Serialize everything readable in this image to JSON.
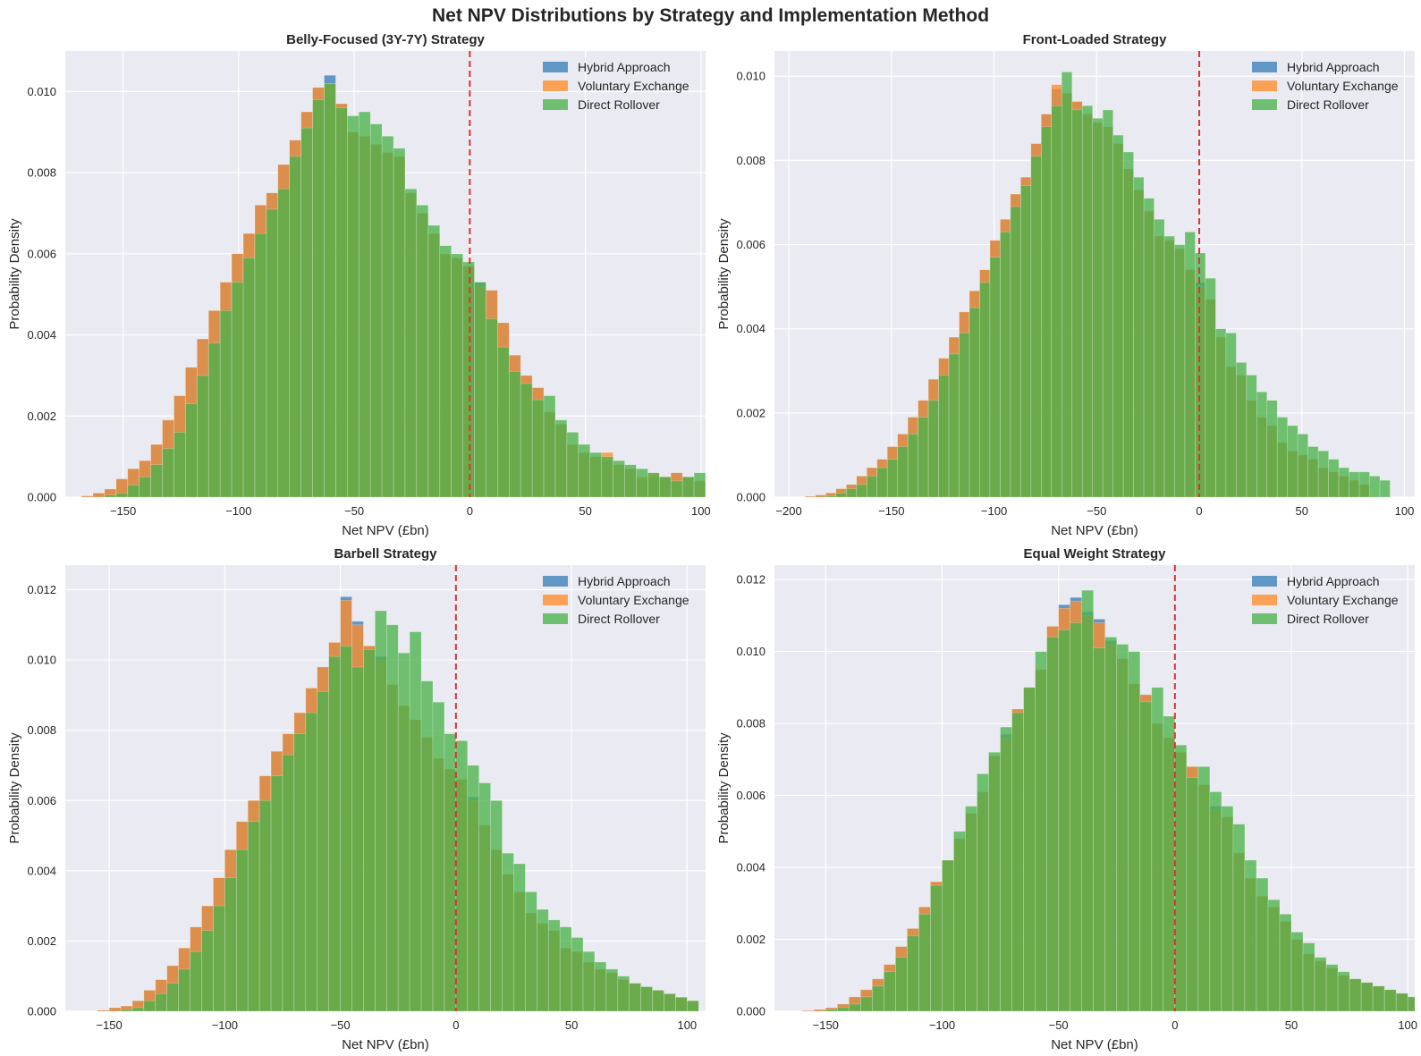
{
  "figure_title": "Net NPV Distributions by Strategy and Implementation Method",
  "colors": {
    "plot_bg": "#eaeaf2",
    "grid": "#ffffff",
    "zero_line": "#e03131",
    "series": [
      "#3a7fb8",
      "#ff8c2a",
      "#4cb24c"
    ]
  },
  "legend": [
    "Hybrid Approach",
    "Voluntary Exchange",
    "Direct Rollover"
  ],
  "chart_data": [
    {
      "type": "bar",
      "title": "Belly-Focused (3Y-7Y) Strategy",
      "xlabel": "Net NPV (£bn)",
      "ylabel": "Probability Density",
      "xlim": [
        -175,
        102
      ],
      "ylim": [
        0,
        0.011
      ],
      "xticks": [
        -150,
        -100,
        -50,
        0,
        50,
        100
      ],
      "yticks": [
        0.0,
        0.002,
        0.004,
        0.006,
        0.008,
        0.01
      ],
      "yticklabels": [
        "0.000",
        "0.002",
        "0.004",
        "0.006",
        "0.008",
        "0.010"
      ],
      "tick_text": [
        "−150",
        "−100",
        "−50",
        "0",
        "50",
        "100"
      ],
      "vline": 0,
      "legend_position": "top-right",
      "grid": true,
      "series": [
        {
          "name": "Hybrid Approach",
          "bin_start": -168,
          "bin_width": 5,
          "values": [
            3e-05,
            0.0001,
            0.0002,
            0.00045,
            0.0007,
            0.0009,
            0.0013,
            0.0019,
            0.0025,
            0.0032,
            0.0039,
            0.0046,
            0.0053,
            0.006,
            0.0065,
            0.0072,
            0.0075,
            0.0082,
            0.0088,
            0.0095,
            0.0101,
            0.0104,
            0.0097,
            0.009,
            0.0089,
            0.0087,
            0.0085,
            0.0084,
            0.0075,
            0.007,
            0.0065,
            0.006,
            0.0059,
            0.0057,
            0.0053,
            0.0051,
            0.0043,
            0.0035,
            0.003,
            0.0027,
            0.0021,
            0.0018,
            0.0013,
            0.0011,
            0.001,
            0.0009,
            0.0008,
            0.0007,
            0.00045,
            0.0005,
            0.0005,
            0.0006,
            0.0005,
            0.0004
          ]
        },
        {
          "name": "Voluntary Exchange",
          "bin_start": -168,
          "bin_width": 5,
          "values": [
            3e-05,
            0.0001,
            0.0002,
            0.00045,
            0.0007,
            0.0009,
            0.0013,
            0.0019,
            0.0025,
            0.0032,
            0.0039,
            0.0046,
            0.0053,
            0.006,
            0.0065,
            0.0072,
            0.0075,
            0.0082,
            0.0088,
            0.0095,
            0.0101,
            0.0102,
            0.0097,
            0.009,
            0.0089,
            0.0087,
            0.0085,
            0.0084,
            0.0075,
            0.007,
            0.0065,
            0.006,
            0.0059,
            0.0057,
            0.0052,
            0.0051,
            0.0043,
            0.0035,
            0.003,
            0.0027,
            0.0021,
            0.0018,
            0.0013,
            0.0011,
            0.001,
            0.0011,
            0.0008,
            0.0007,
            0.0005,
            0.0006,
            0.0005,
            0.0006,
            0.0005,
            0.0004
          ]
        },
        {
          "name": "Direct Rollover",
          "bin_start": -158,
          "bin_width": 5,
          "values": [
            5e-05,
            0.0001,
            0.0003,
            0.0005,
            0.0008,
            0.0012,
            0.0016,
            0.0023,
            0.003,
            0.0038,
            0.0046,
            0.0053,
            0.0059,
            0.0065,
            0.0071,
            0.0076,
            0.0084,
            0.0091,
            0.0098,
            0.0102,
            0.0096,
            0.0094,
            0.0095,
            0.0092,
            0.0089,
            0.0086,
            0.0076,
            0.0072,
            0.0067,
            0.0062,
            0.006,
            0.0058,
            0.0053,
            0.0044,
            0.0037,
            0.0031,
            0.0028,
            0.0024,
            0.0025,
            0.0019,
            0.0016,
            0.0013,
            0.0011,
            0.001,
            0.0009,
            0.0008,
            0.0007,
            0.0006,
            0.0005,
            0.0004,
            0.0005,
            0.0006,
            0.0007
          ]
        }
      ]
    },
    {
      "type": "bar",
      "title": "Front-Loaded Strategy",
      "xlabel": "Net NPV (£bn)",
      "ylabel": "Probability Density",
      "xlim": [
        -207,
        105
      ],
      "ylim": [
        0,
        0.0106
      ],
      "xticks": [
        -200,
        -150,
        -100,
        -50,
        0,
        50,
        100
      ],
      "yticks": [
        0.0,
        0.002,
        0.004,
        0.006,
        0.008,
        0.01
      ],
      "yticklabels": [
        "0.000",
        "0.002",
        "0.004",
        "0.006",
        "0.008",
        "0.010"
      ],
      "tick_text": [
        "−200",
        "−150",
        "−100",
        "−50",
        "0",
        "50",
        "100"
      ],
      "vline": 0,
      "legend_position": "top-right",
      "grid": true,
      "series": [
        {
          "name": "Hybrid Approach",
          "bin_start": -192,
          "bin_width": 5,
          "values": [
            2e-05,
            5e-05,
            0.0001,
            0.0002,
            0.0003,
            0.0005,
            0.0007,
            0.0009,
            0.0012,
            0.0015,
            0.0019,
            0.0023,
            0.0028,
            0.0033,
            0.0038,
            0.0044,
            0.0049,
            0.0054,
            0.0061,
            0.0066,
            0.0072,
            0.0076,
            0.0084,
            0.0091,
            0.0097,
            0.0096,
            0.0094,
            0.0091,
            0.0089,
            0.0088,
            0.0084,
            0.0078,
            0.0073,
            0.0068,
            0.0062,
            0.0061,
            0.0059,
            0.0054,
            0.0051,
            0.0047,
            0.0038,
            0.0031,
            0.0029,
            0.0023,
            0.0019,
            0.0017,
            0.0013,
            0.0011,
            0.001,
            0.0009,
            0.0007,
            0.0006,
            0.0005,
            0.0004,
            0.0003
          ]
        },
        {
          "name": "Voluntary Exchange",
          "bin_start": -192,
          "bin_width": 5,
          "values": [
            2e-05,
            5e-05,
            0.0001,
            0.0002,
            0.0003,
            0.0005,
            0.0007,
            0.0009,
            0.0012,
            0.0015,
            0.0019,
            0.0023,
            0.0028,
            0.0033,
            0.0038,
            0.0044,
            0.0049,
            0.0054,
            0.0061,
            0.0066,
            0.0072,
            0.0076,
            0.0084,
            0.0091,
            0.0098,
            0.0096,
            0.0094,
            0.0091,
            0.0089,
            0.0088,
            0.0084,
            0.0078,
            0.0073,
            0.0068,
            0.0062,
            0.0061,
            0.0059,
            0.0054,
            0.005,
            0.0047,
            0.0038,
            0.0031,
            0.0029,
            0.0023,
            0.0019,
            0.0017,
            0.0013,
            0.0011,
            0.001,
            0.0009,
            0.0007,
            0.0006,
            0.0005,
            0.0004,
            0.0003
          ]
        },
        {
          "name": "Direct Rollover",
          "bin_start": -182,
          "bin_width": 5,
          "values": [
            3e-05,
            0.0001,
            0.0002,
            0.0003,
            0.0005,
            0.0007,
            0.0009,
            0.0012,
            0.0015,
            0.0019,
            0.0023,
            0.0029,
            0.0034,
            0.0039,
            0.0045,
            0.0051,
            0.0057,
            0.0063,
            0.0069,
            0.0074,
            0.0081,
            0.0088,
            0.0093,
            0.0101,
            0.0092,
            0.0093,
            0.009,
            0.0092,
            0.0086,
            0.0082,
            0.0076,
            0.0071,
            0.0066,
            0.0062,
            0.006,
            0.0063,
            0.0058,
            0.0052,
            0.004,
            0.0039,
            0.0032,
            0.0029,
            0.0025,
            0.0023,
            0.0019,
            0.0017,
            0.0015,
            0.0012,
            0.0011,
            0.0009,
            0.0007,
            0.0006,
            0.0006,
            0.0005,
            0.0004
          ]
        }
      ]
    },
    {
      "type": "bar",
      "title": "Barbell Strategy",
      "xlabel": "Net NPV (£bn)",
      "ylabel": "Probability Density",
      "xlim": [
        -169,
        108
      ],
      "ylim": [
        0,
        0.0127
      ],
      "xticks": [
        -150,
        -100,
        -50,
        0,
        50,
        100
      ],
      "yticks": [
        0.0,
        0.002,
        0.004,
        0.006,
        0.008,
        0.01,
        0.012
      ],
      "yticklabels": [
        "0.000",
        "0.002",
        "0.004",
        "0.006",
        "0.008",
        "0.010",
        "0.012"
      ],
      "tick_text": [
        "−150",
        "−100",
        "−50",
        "0",
        "50",
        "100"
      ],
      "vline": 0,
      "legend_position": "top-right",
      "grid": true,
      "series": [
        {
          "name": "Hybrid Approach",
          "bin_start": -155,
          "bin_width": 5,
          "values": [
            3e-05,
            0.0001,
            0.00015,
            0.0003,
            0.0006,
            0.0009,
            0.0013,
            0.0018,
            0.0024,
            0.003,
            0.0038,
            0.0046,
            0.0054,
            0.006,
            0.0067,
            0.0074,
            0.0079,
            0.0085,
            0.0092,
            0.0098,
            0.0105,
            0.0118,
            0.0111,
            0.0104,
            0.0101,
            0.0093,
            0.0087,
            0.0083,
            0.0078,
            0.0072,
            0.0069,
            0.0066,
            0.0061,
            0.0053,
            0.0046,
            0.0039,
            0.0034,
            0.0028,
            0.0025,
            0.0023,
            0.0018,
            0.0017,
            0.0014,
            0.0012,
            0.0011,
            0.0009,
            0.0008,
            0.0007,
            0.0006,
            0.0005,
            0.0004,
            0.0003
          ]
        },
        {
          "name": "Voluntary Exchange",
          "bin_start": -155,
          "bin_width": 5,
          "values": [
            3e-05,
            0.0001,
            0.00015,
            0.0003,
            0.0006,
            0.0009,
            0.0013,
            0.0018,
            0.0024,
            0.003,
            0.0038,
            0.0046,
            0.0054,
            0.006,
            0.0067,
            0.0074,
            0.0079,
            0.0085,
            0.0092,
            0.0098,
            0.0105,
            0.0117,
            0.011,
            0.0104,
            0.01,
            0.0093,
            0.0087,
            0.0083,
            0.0078,
            0.0072,
            0.0069,
            0.0066,
            0.006,
            0.0053,
            0.0046,
            0.0039,
            0.0034,
            0.0028,
            0.0025,
            0.0023,
            0.0018,
            0.0017,
            0.0014,
            0.0012,
            0.0011,
            0.0009,
            0.0008,
            0.0007,
            0.0006,
            0.0005,
            0.0004,
            0.0003
          ]
        },
        {
          "name": "Direct Rollover",
          "bin_start": -145,
          "bin_width": 5,
          "values": [
            5e-05,
            0.0001,
            0.0003,
            0.0005,
            0.0008,
            0.0012,
            0.0017,
            0.0023,
            0.003,
            0.0038,
            0.0046,
            0.0054,
            0.006,
            0.0067,
            0.0073,
            0.0079,
            0.0085,
            0.0091,
            0.0101,
            0.0104,
            0.0098,
            0.0103,
            0.0114,
            0.011,
            0.0102,
            0.0108,
            0.0094,
            0.0088,
            0.0079,
            0.0077,
            0.007,
            0.0065,
            0.006,
            0.0045,
            0.0042,
            0.0034,
            0.0029,
            0.0026,
            0.0024,
            0.0021,
            0.0017,
            0.0014,
            0.0012,
            0.001,
            0.0008,
            0.0007,
            0.0006,
            0.0005,
            0.0004,
            0.0003
          ]
        }
      ]
    },
    {
      "type": "bar",
      "title": "Equal Weight Strategy",
      "xlabel": "Net NPV (£bn)",
      "ylabel": "Probability Density",
      "xlim": [
        -172,
        103
      ],
      "ylim": [
        0,
        0.0124
      ],
      "xticks": [
        -150,
        -100,
        -50,
        0,
        50,
        100
      ],
      "yticks": [
        0.0,
        0.002,
        0.004,
        0.006,
        0.008,
        0.01,
        0.012
      ],
      "yticklabels": [
        "0.000",
        "0.002",
        "0.004",
        "0.006",
        "0.008",
        "0.010",
        "0.012"
      ],
      "tick_text": [
        "−150",
        "−100",
        "−50",
        "0",
        "50",
        "100"
      ],
      "vline": 0,
      "legend_position": "top-right",
      "grid": true,
      "series": [
        {
          "name": "Hybrid Approach",
          "bin_start": -160,
          "bin_width": 5,
          "values": [
            2e-05,
            5e-05,
            0.0001,
            0.0002,
            0.0004,
            0.0006,
            0.0009,
            0.0013,
            0.0018,
            0.0023,
            0.0029,
            0.0036,
            0.0042,
            0.0048,
            0.0055,
            0.0061,
            0.0071,
            0.0077,
            0.0084,
            0.009,
            0.0095,
            0.0107,
            0.0113,
            0.0115,
            0.0111,
            0.0109,
            0.0103,
            0.0098,
            0.0091,
            0.0088,
            0.008,
            0.0076,
            0.0072,
            0.0068,
            0.0063,
            0.0057,
            0.0054,
            0.0044,
            0.0037,
            0.0032,
            0.0029,
            0.0025,
            0.002,
            0.0016,
            0.0014,
            0.0012,
            0.001,
            0.0009,
            0.0008,
            0.0007,
            0.0006,
            0.0005,
            0.0004
          ]
        },
        {
          "name": "Voluntary Exchange",
          "bin_start": -160,
          "bin_width": 5,
          "values": [
            2e-05,
            5e-05,
            0.0001,
            0.0002,
            0.0004,
            0.0006,
            0.0009,
            0.0013,
            0.0018,
            0.0023,
            0.0029,
            0.0036,
            0.0042,
            0.0048,
            0.0055,
            0.0061,
            0.0071,
            0.0076,
            0.0084,
            0.009,
            0.0095,
            0.0107,
            0.0112,
            0.0114,
            0.011,
            0.0108,
            0.0102,
            0.0098,
            0.0091,
            0.0088,
            0.008,
            0.0076,
            0.0072,
            0.0068,
            0.0063,
            0.0056,
            0.0054,
            0.0044,
            0.0037,
            0.0032,
            0.0029,
            0.0025,
            0.002,
            0.0016,
            0.0014,
            0.0012,
            0.001,
            0.0009,
            0.0008,
            0.0007,
            0.0006,
            0.0005,
            0.0004
          ]
        },
        {
          "name": "Direct Rollover",
          "bin_start": -150,
          "bin_width": 5,
          "values": [
            5e-05,
            0.0001,
            0.0002,
            0.0004,
            0.0007,
            0.0011,
            0.0015,
            0.0021,
            0.0027,
            0.0035,
            0.0042,
            0.005,
            0.0057,
            0.0066,
            0.0072,
            0.0079,
            0.0083,
            0.009,
            0.01,
            0.0104,
            0.0106,
            0.0108,
            0.0117,
            0.0101,
            0.0104,
            0.0102,
            0.01,
            0.0086,
            0.009,
            0.0082,
            0.0074,
            0.0065,
            0.0068,
            0.0061,
            0.0057,
            0.0052,
            0.0042,
            0.0037,
            0.0031,
            0.0027,
            0.0022,
            0.0019,
            0.0015,
            0.0013,
            0.0011,
            0.0009,
            0.0008,
            0.0007,
            0.0006,
            0.0005,
            0.0004,
            0.0003
          ]
        }
      ]
    }
  ]
}
